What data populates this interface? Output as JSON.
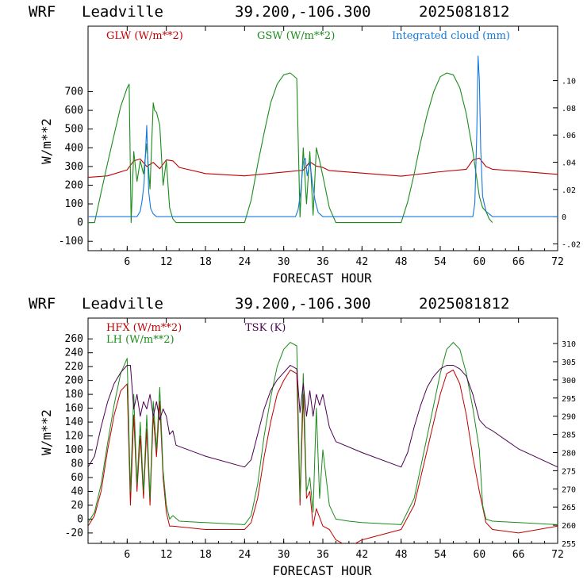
{
  "chart_data": [
    {
      "type": "line",
      "header": {
        "model": "WRF",
        "site": "Leadville",
        "coords": "39.200,-106.300",
        "date": "2025081812"
      },
      "xlabel": "FORECAST HOUR",
      "ylabel": "W/m**2",
      "xlim": [
        0,
        72
      ],
      "ylim": [
        -150,
        1050
      ],
      "y2lim": [
        -0.025,
        0.14
      ],
      "xticks": [
        "6",
        "12",
        "18",
        "24",
        "30",
        "36",
        "42",
        "48",
        "54",
        "60",
        "66",
        "72"
      ],
      "yticks": [
        "-100",
        "0",
        "100",
        "200",
        "300",
        "400",
        "500",
        "600",
        "700"
      ],
      "y2ticks": [
        "-.02",
        "0",
        ".02",
        ".04",
        ".06",
        ".08",
        ".10"
      ],
      "series": [
        {
          "name": "GLW (W/m**2)",
          "color": "#c00000",
          "axis": "left",
          "x": [
            0,
            3,
            6,
            7,
            8,
            9,
            10,
            11,
            12,
            13,
            14,
            18,
            24,
            30,
            33,
            34,
            35,
            36,
            37,
            40,
            48,
            54,
            58,
            59,
            60,
            61,
            62,
            66,
            72
          ],
          "values": [
            242,
            250,
            282,
            330,
            340,
            300,
            322,
            288,
            335,
            330,
            295,
            262,
            250,
            270,
            280,
            325,
            302,
            295,
            278,
            270,
            248,
            272,
            285,
            335,
            345,
            300,
            285,
            275,
            258
          ]
        },
        {
          "name": "GSW (W/m**2)",
          "color": "#1a8c1a",
          "axis": "left",
          "x": [
            0,
            1,
            2,
            3,
            4,
            5,
            6,
            6.3,
            6.6,
            7,
            7.5,
            8,
            8.5,
            9,
            9.5,
            10,
            10.2,
            10.5,
            11,
            11.5,
            12,
            12.5,
            13,
            13.5,
            24,
            25,
            26,
            27,
            28,
            29,
            30,
            31,
            32,
            32.5,
            33,
            33.5,
            34,
            34.5,
            35,
            35.5,
            36,
            37,
            38,
            48,
            49,
            50,
            51,
            52,
            53,
            54,
            55,
            56,
            57,
            58,
            59,
            60,
            60.5,
            61,
            61.5,
            62
          ],
          "values": [
            0,
            0,
            160,
            320,
            470,
            620,
            720,
            740,
            0,
            380,
            220,
            330,
            260,
            420,
            180,
            640,
            600,
            590,
            520,
            200,
            330,
            80,
            20,
            0,
            0,
            120,
            310,
            480,
            640,
            740,
            790,
            800,
            770,
            30,
            400,
            100,
            380,
            40,
            400,
            330,
            250,
            80,
            0,
            0,
            110,
            260,
            430,
            580,
            700,
            780,
            800,
            790,
            720,
            580,
            380,
            140,
            80,
            60,
            20,
            0
          ]
        },
        {
          "name": "Integrated cloud (mm)",
          "color": "#1478dc",
          "axis": "right",
          "x": [
            0,
            7.5,
            8,
            8.3,
            8.6,
            9,
            9.3,
            9.6,
            10,
            10.5,
            11,
            31.8,
            32.2,
            32.6,
            33,
            33.3,
            33.6,
            34,
            34.4,
            34.8,
            35.3,
            36,
            59,
            59.3,
            59.6,
            59.8,
            60,
            60.2,
            60.5,
            61,
            62,
            72
          ],
          "values": [
            0,
            0,
            0.004,
            0.012,
            0.025,
            0.067,
            0.018,
            0.006,
            0.002,
            0,
            0,
            0,
            0.005,
            0.018,
            0.04,
            0.043,
            0.03,
            0.04,
            0.025,
            0.012,
            0.003,
            0,
            0,
            0.01,
            0.06,
            0.118,
            0.1,
            0.05,
            0.015,
            0.004,
            0,
            0
          ]
        }
      ]
    },
    {
      "type": "line",
      "header": {
        "model": "WRF",
        "site": "Leadville",
        "coords": "39.200,-106.300",
        "date": "2025081812"
      },
      "xlabel": "FORECAST HOUR",
      "ylabel": "W/m**2",
      "xlim": [
        0,
        72
      ],
      "ylim": [
        -35,
        290
      ],
      "y2lim": [
        255,
        317
      ],
      "xticks": [
        "6",
        "12",
        "18",
        "24",
        "30",
        "36",
        "42",
        "48",
        "54",
        "60",
        "66",
        "72"
      ],
      "yticks": [
        "-20",
        "0",
        "20",
        "40",
        "60",
        "80",
        "100",
        "120",
        "140",
        "160",
        "180",
        "200",
        "220",
        "240",
        "260"
      ],
      "y2ticks": [
        "255",
        "260",
        "265",
        "270",
        "275",
        "280",
        "285",
        "290",
        "295",
        "300",
        "305",
        "310"
      ],
      "series": [
        {
          "name": "HFX (W/m**2)",
          "color": "#c00000",
          "axis": "left",
          "x": [
            0,
            1,
            2,
            3,
            4,
            5,
            6,
            6.5,
            7,
            7.5,
            8,
            8.5,
            9,
            9.5,
            10,
            10.5,
            11,
            11.5,
            12,
            12.5,
            13,
            18,
            24,
            25,
            26,
            27,
            28,
            29,
            30,
            31,
            32,
            32.5,
            33,
            33.5,
            34,
            34.5,
            35,
            36,
            37,
            38,
            40,
            42,
            48,
            50,
            52,
            54,
            55,
            56,
            57,
            58,
            59,
            60,
            61,
            62,
            66,
            72
          ],
          "values": [
            -10,
            5,
            40,
            100,
            150,
            185,
            195,
            20,
            150,
            40,
            120,
            30,
            130,
            20,
            150,
            90,
            170,
            60,
            10,
            -10,
            -10,
            -15,
            -15,
            -5,
            30,
            90,
            140,
            180,
            200,
            215,
            210,
            20,
            180,
            30,
            40,
            -10,
            15,
            -10,
            -15,
            -30,
            -40,
            -30,
            -15,
            20,
            100,
            180,
            210,
            215,
            195,
            150,
            90,
            40,
            -5,
            -15,
            -20,
            -10
          ]
        },
        {
          "name": "LH  (W/m**2)",
          "color": "#1a8c1a",
          "axis": "left",
          "x": [
            0,
            1,
            2,
            3,
            4,
            5,
            6,
            6.5,
            7,
            7.5,
            8,
            8.5,
            9,
            9.5,
            10,
            10.5,
            11,
            11.5,
            12,
            12.5,
            13,
            14,
            18,
            24,
            25,
            26,
            27,
            28,
            29,
            30,
            31,
            32,
            32.5,
            33,
            33.5,
            34,
            34.5,
            35,
            35.5,
            36,
            37,
            38,
            40,
            42,
            48,
            50,
            52,
            54,
            55,
            56,
            57,
            58,
            59,
            60,
            60.5,
            61,
            62,
            66,
            72
          ],
          "values": [
            -5,
            10,
            50,
            110,
            165,
            210,
            232,
            40,
            180,
            50,
            140,
            40,
            150,
            30,
            170,
            100,
            190,
            70,
            20,
            0,
            5,
            -3,
            -5,
            -8,
            5,
            50,
            120,
            175,
            220,
            245,
            255,
            250,
            30,
            210,
            40,
            60,
            10,
            160,
            30,
            100,
            20,
            0,
            -3,
            -5,
            -8,
            30,
            120,
            210,
            245,
            255,
            245,
            210,
            160,
            100,
            20,
            0,
            -3,
            -5,
            -8
          ]
        },
        {
          "name": "TSK (K)",
          "color": "#4b0050",
          "axis": "right",
          "x": [
            0,
            1,
            2,
            3,
            4,
            5,
            6,
            6.5,
            7,
            7.5,
            8,
            8.5,
            9,
            9.5,
            10,
            10.5,
            11,
            11.5,
            12,
            12.5,
            13,
            13.5,
            18,
            24,
            25,
            26,
            27,
            28,
            29,
            30,
            31,
            32,
            32.5,
            33,
            33.5,
            34,
            34.5,
            35,
            35.5,
            36,
            37,
            38,
            42,
            48,
            49,
            50,
            51,
            52,
            53,
            54,
            55,
            56,
            57,
            58,
            59,
            60,
            61,
            62,
            66,
            72
          ],
          "values": [
            276,
            279,
            287,
            294,
            299,
            302,
            304,
            304,
            292,
            296,
            290,
            294,
            292,
            296,
            290,
            294,
            289,
            292,
            290,
            285,
            286,
            282,
            279,
            276,
            278,
            285,
            292,
            297,
            300,
            302,
            304,
            303,
            291,
            299,
            290,
            297,
            290,
            296,
            293,
            296,
            287,
            283,
            280,
            276,
            280,
            287,
            293,
            298,
            301,
            303,
            304,
            304,
            303,
            301,
            296,
            289,
            287,
            286,
            281,
            276
          ]
        }
      ]
    }
  ]
}
